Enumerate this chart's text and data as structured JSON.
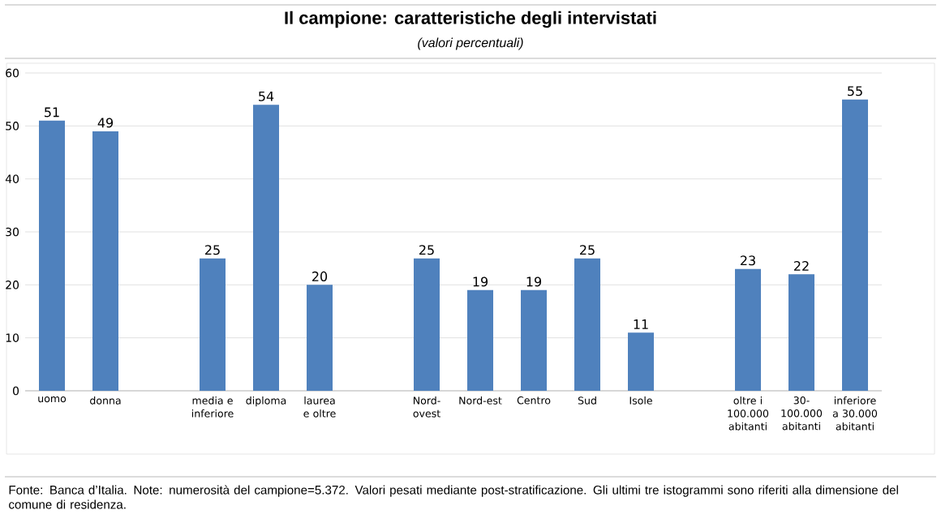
{
  "chart_data": {
    "type": "bar",
    "title": "Il campione: caratteristiche degli intervistati",
    "subtitle": "(valori percentuali)",
    "categories": [
      "uomo",
      "donna",
      null,
      "media e inferiore",
      "diploma",
      "laurea e oltre",
      null,
      "Nord-ovest",
      "Nord-est",
      "Centro",
      "Sud",
      "Isole",
      null,
      "oltre i 100.000 abitanti",
      "30-100.000 abitanti",
      "inferiore a 30.000 abitanti"
    ],
    "values": [
      51,
      49,
      null,
      25,
      54,
      20,
      null,
      25,
      19,
      19,
      25,
      11,
      null,
      23,
      22,
      55
    ],
    "color": "#4f81bd",
    "ylim": [
      0,
      60
    ],
    "yticks": [
      0,
      10,
      20,
      30,
      40,
      50,
      60
    ],
    "grid": "y",
    "data_labels": true,
    "annotations": [
      "Fonte: Banca d’Italia. Note: numerosità del campione=5.372. Valori pesati mediante post-stratificazione. Gli ultimi tre istogrammi sono riferiti alla dimensione del comune di residenza."
    ]
  }
}
